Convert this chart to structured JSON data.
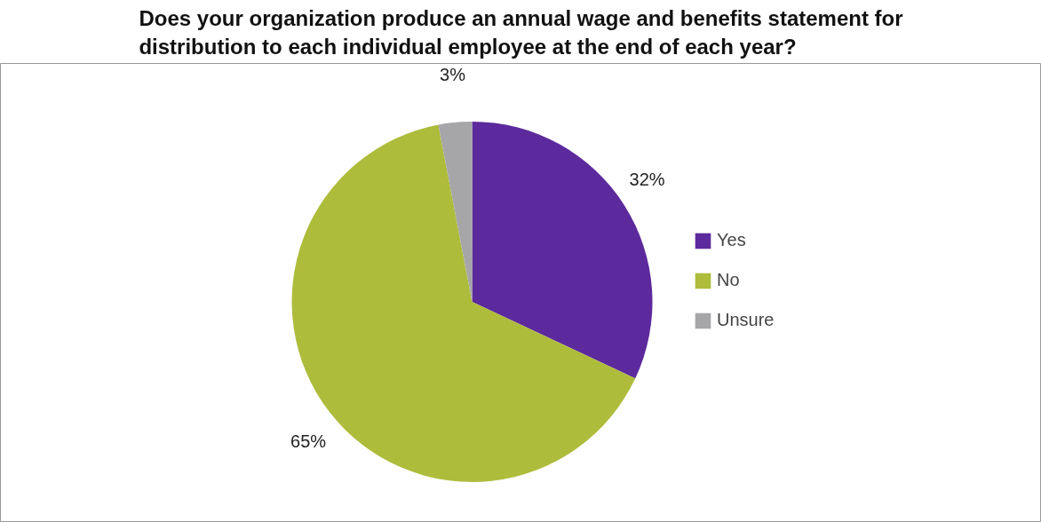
{
  "chart_data": {
    "type": "pie",
    "title": "Does your organization produce an annual wage and benefits statement for distribution to each individual employee at the end of each year?",
    "categories": [
      "Yes",
      "No",
      "Unsure"
    ],
    "values": [
      32,
      65,
      3
    ],
    "colors": [
      "#5c2a9c",
      "#aebc3c",
      "#a6a6a8"
    ],
    "value_labels": [
      "32%",
      "65%",
      "3%"
    ],
    "legend": "right"
  }
}
